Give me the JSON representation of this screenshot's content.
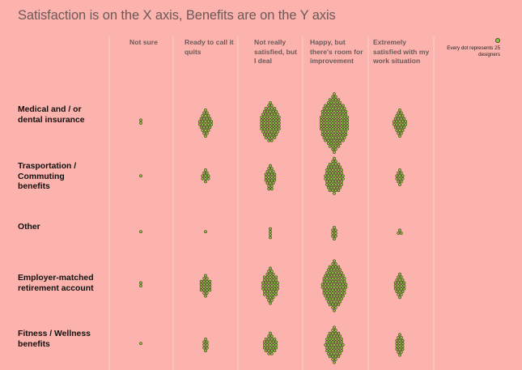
{
  "title": "Satisfaction is on the X axis, Benefits are on the Y axis",
  "legend": {
    "text": "Every dot represents 25 designers",
    "dot_color": "#8bc63f"
  },
  "colors": {
    "background": "#fdb3ad",
    "grid": "#f3d1cd",
    "dot_fill": "#8bc63f",
    "dot_stroke": "#3a3a1a"
  },
  "chart_data": {
    "type": "scatter",
    "unit": "dots (1 dot = 25 designers)",
    "x_categories": [
      "Not sure",
      "Ready to call it quits",
      "Not really satisfied, but I deal",
      "Happy, but there's room for improvement",
      "Extremely satisfied with my work situation"
    ],
    "y_categories": [
      "Medical and / or dental insurance",
      "Trasportation / Commuting benefits",
      "Other",
      "Employer-matched retirement account",
      "Fitness / Wellness benefits"
    ],
    "series": [
      {
        "values": [
          2,
          30,
          70,
          140,
          30
        ]
      },
      {
        "values": [
          1,
          10,
          25,
          60,
          12
        ]
      },
      {
        "values": [
          1,
          1,
          4,
          8,
          3
        ]
      },
      {
        "values": [
          2,
          22,
          50,
          100,
          24
        ]
      },
      {
        "values": [
          1,
          8,
          28,
          55,
          18
        ]
      }
    ]
  }
}
